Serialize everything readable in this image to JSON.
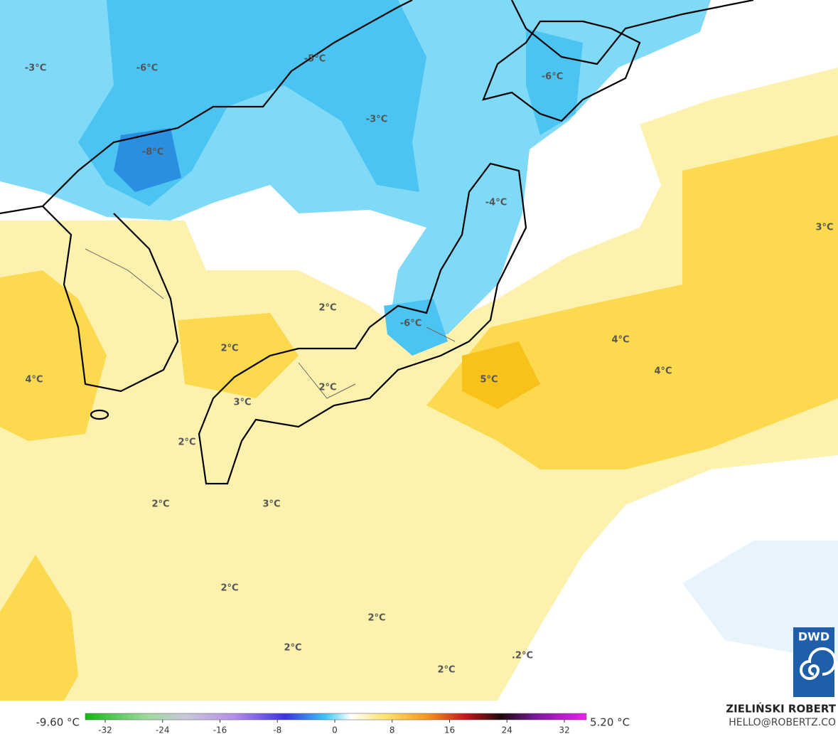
{
  "map_labels": [
    "-3°C",
    "-6°C",
    "-5°C",
    "-6°C",
    "-3°C",
    "-8°C",
    "-4°C",
    "3°C",
    "2°C",
    "-6°C",
    "2°C",
    "4°C",
    "4°C",
    "4°C",
    "5°C",
    "2°C",
    "3°C",
    "2°C",
    "2°C",
    "3°C",
    "2°C",
    "2°C",
    "2°C",
    ".2°C",
    "2°C"
  ],
  "colorbar": {
    "min_label": "-9.60 °C",
    "max_label": "5.20 °C",
    "ticks": [
      -32,
      -24,
      -16,
      -8,
      0,
      8,
      16,
      24,
      32
    ]
  },
  "credit": {
    "name": "ZIELIŃSKI ROBERT",
    "contact": "HELLO@ROBERTZ.CO"
  },
  "logo": "DWD"
}
